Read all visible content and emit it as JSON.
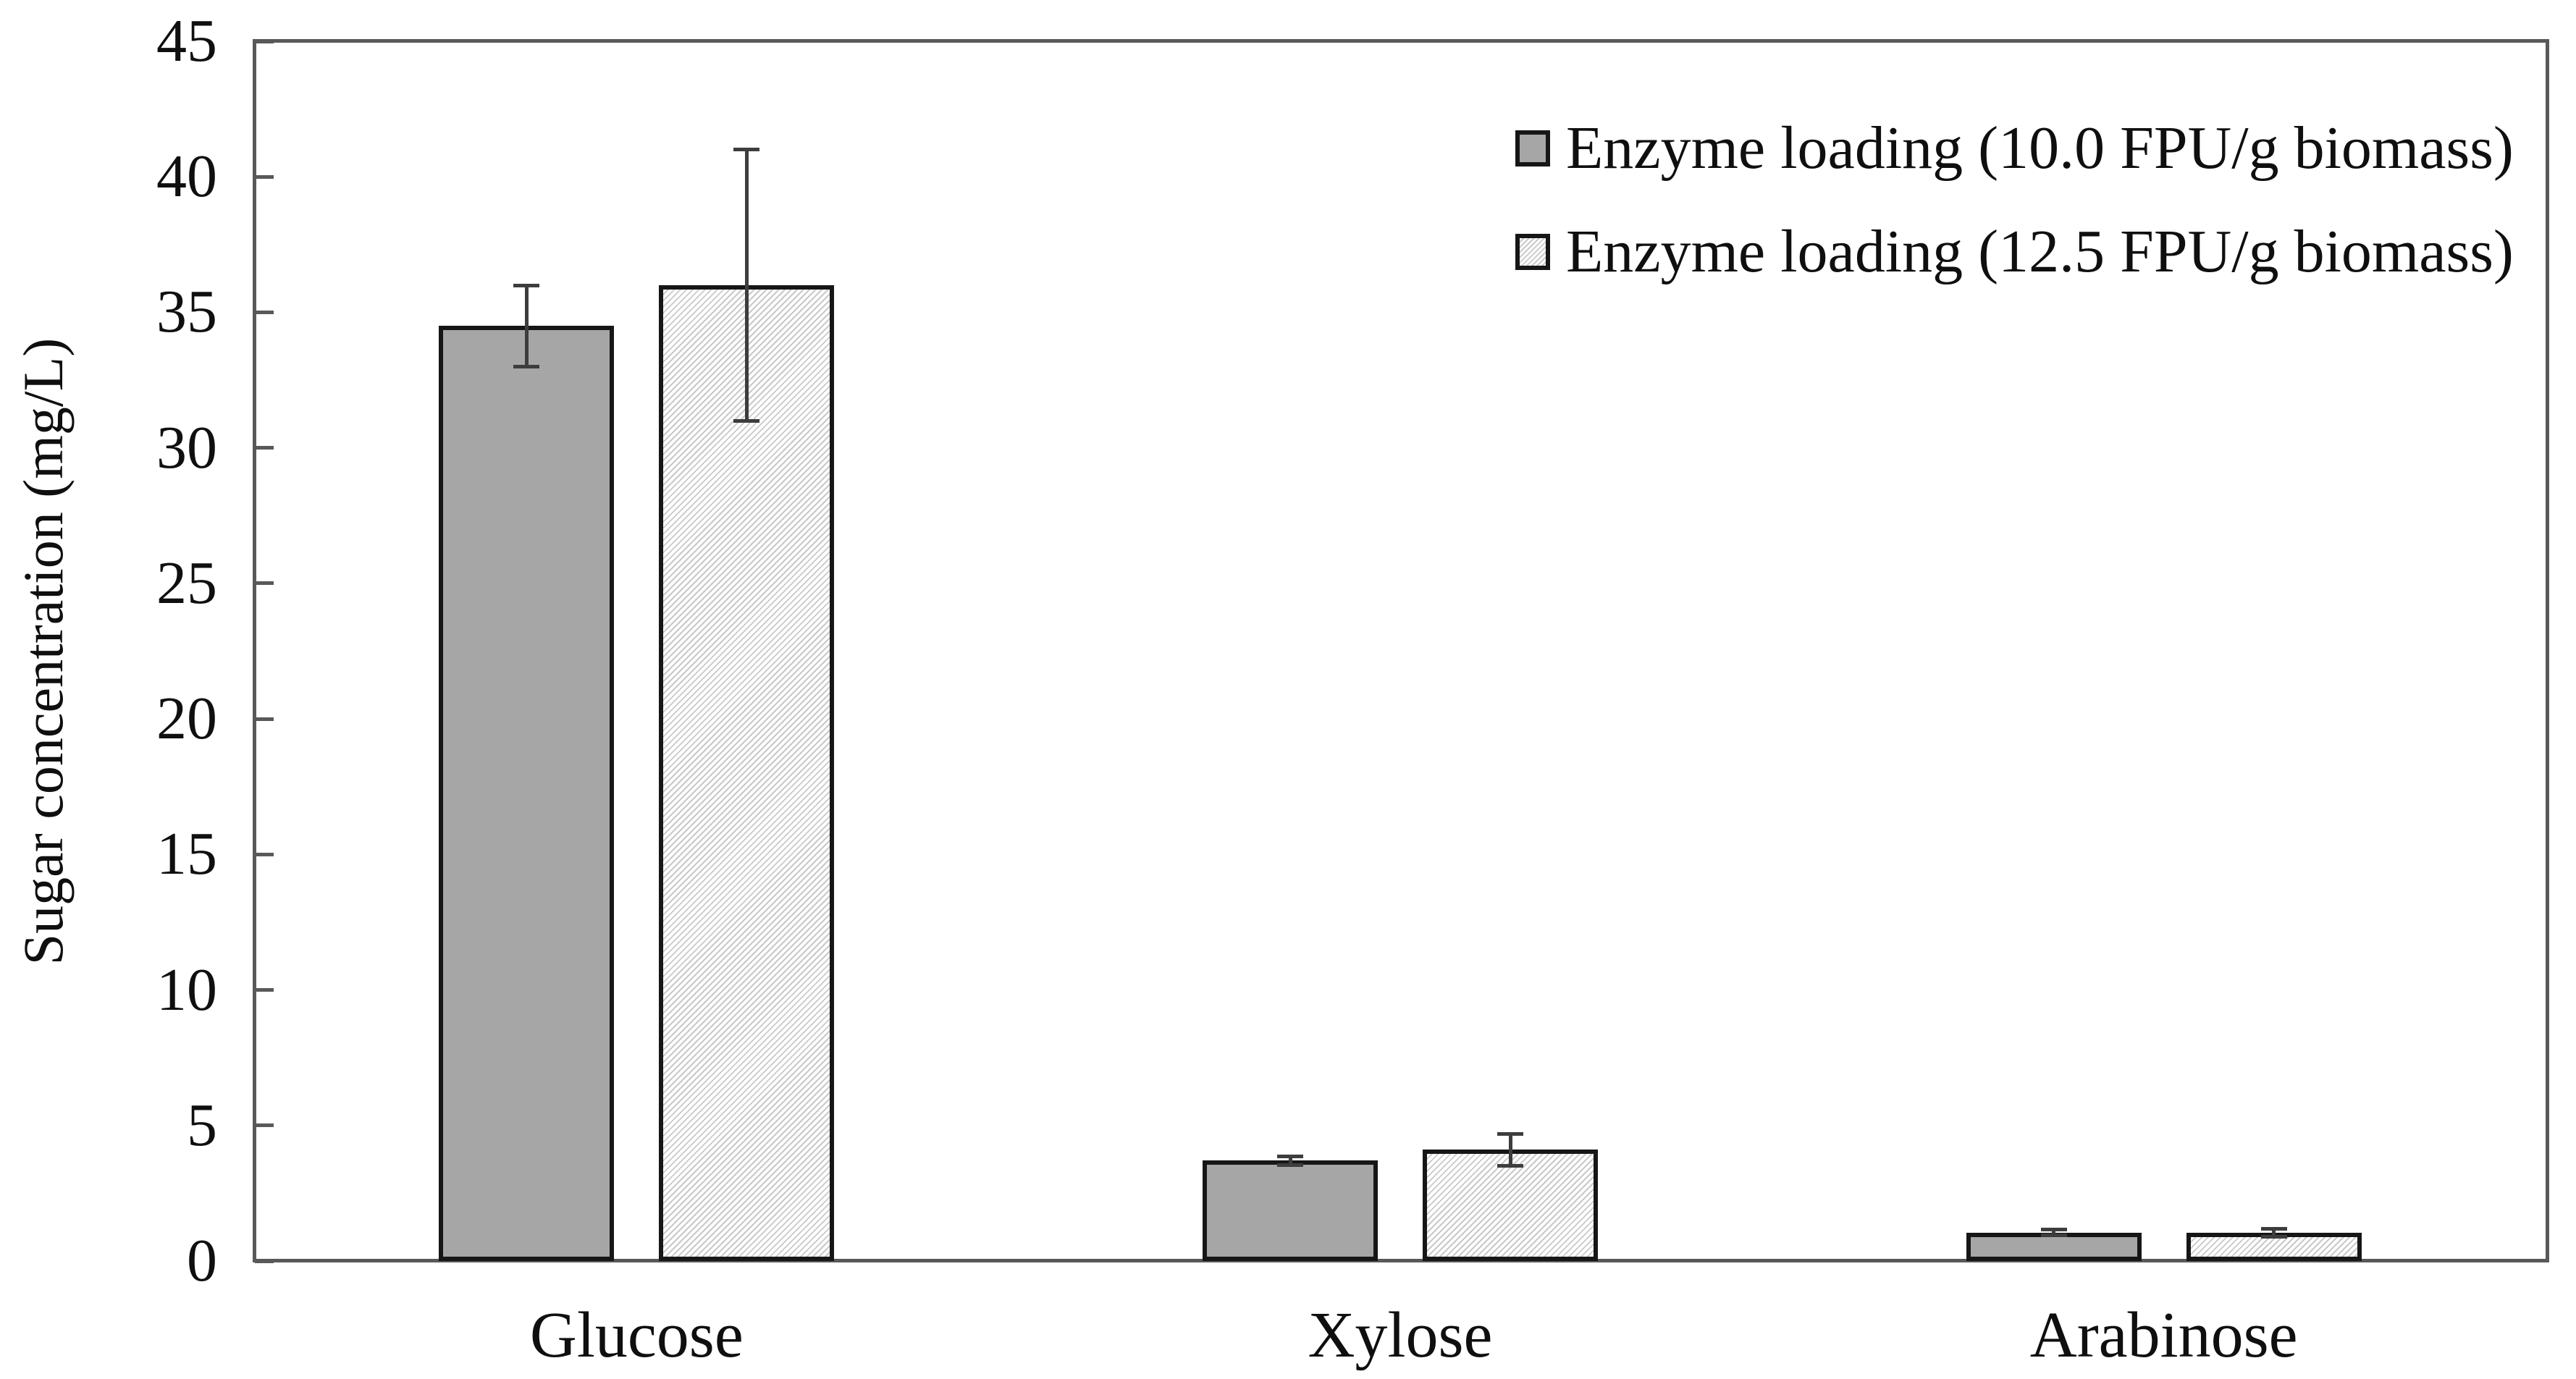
{
  "chart_data": {
    "type": "bar",
    "title": "",
    "categories": [
      "Glucose",
      "Xylose",
      "Arabinose"
    ],
    "series": [
      {
        "name": "Enzyme loading (10.0 FPU/g biomass)",
        "style": "solid",
        "values": [
          34.5,
          3.7,
          1.05
        ],
        "errors": [
          1.5,
          0.15,
          0.1
        ]
      },
      {
        "name": "Enzyme loading (12.5 FPU/g biomass)",
        "style": "hatched",
        "values": [
          36.0,
          4.1,
          1.05
        ],
        "errors": [
          5.0,
          0.6,
          0.15
        ]
      }
    ],
    "xlabel": "",
    "ylabel": "Sugar concentration (mg/L)",
    "ylim": [
      0,
      45
    ],
    "yticks": [
      0,
      5,
      10,
      15,
      20,
      25,
      30,
      35,
      40,
      45
    ],
    "grid": false,
    "error_bars": true,
    "legend_position": "top-right-inside"
  },
  "colors": {
    "bar_fill_solid": "#a6a6a6",
    "bar_hatch_line": "#c9c9c9",
    "bar_border": "#161616",
    "axis": "#595959",
    "error_bar": "#3d3d3d",
    "text": "#0f0f0f",
    "background": "#ffffff"
  }
}
